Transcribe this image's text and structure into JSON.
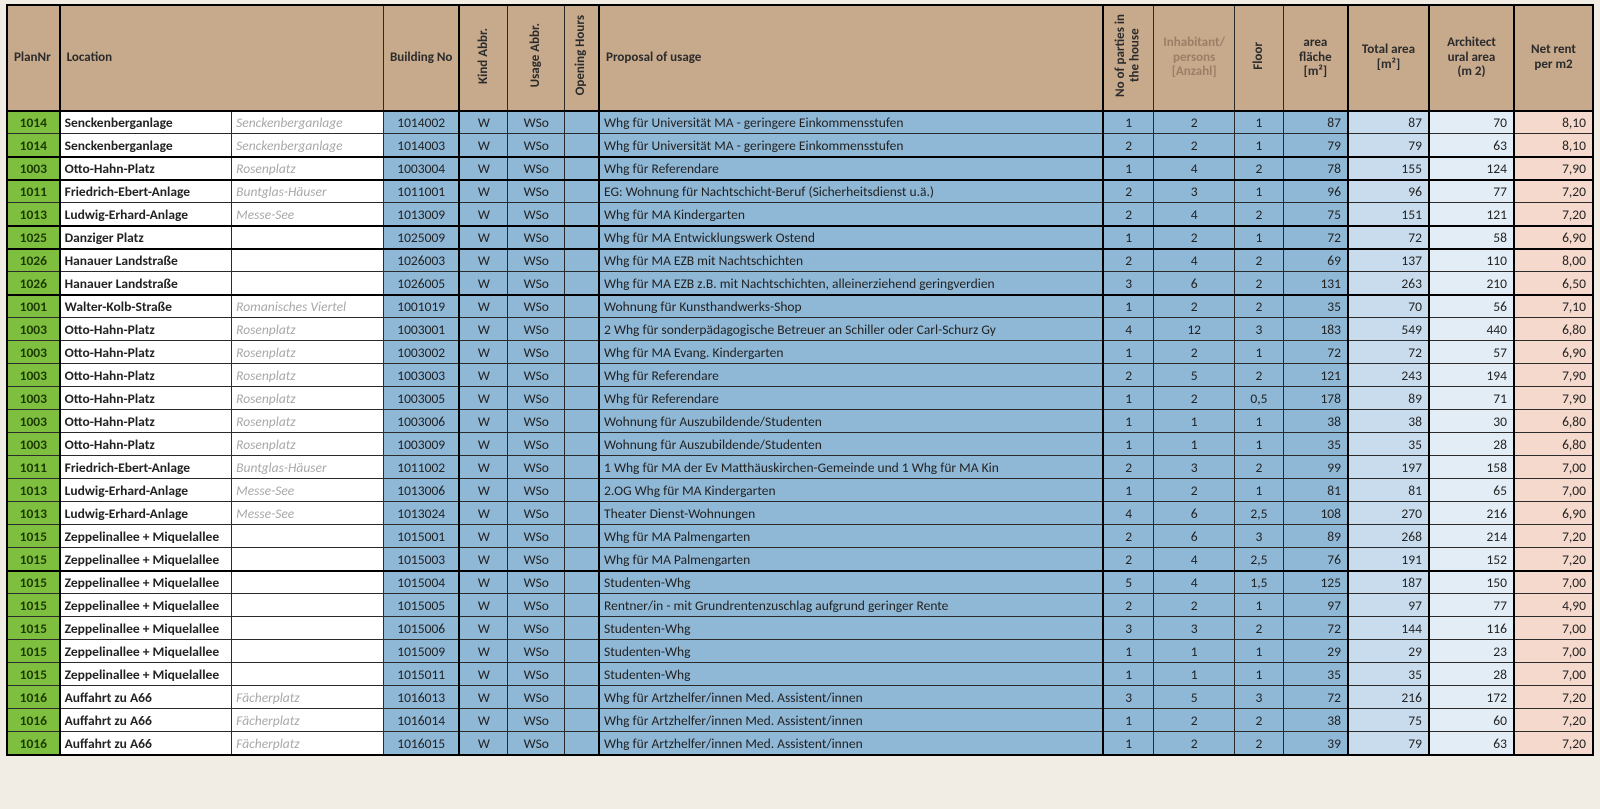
{
  "headers": {
    "plan": "PlanNr",
    "location": "Location",
    "sublocation": "",
    "building": "Building No",
    "kind": "Kind Abbr.",
    "usage": "Usage Abbr.",
    "opening": "Opening Hours",
    "proposal": "Proposal of usage",
    "parties": "No of parties in the house",
    "inhab_l1": "Inhabitant/",
    "inhab_l2": "persons",
    "inhab_l3": "[Anzahl]",
    "floor": "Floor",
    "area_l1": "area",
    "area_l2": "fläche",
    "area_l3": "[m²]",
    "total_l1": "Total area",
    "total_l2": "[m²]",
    "arch_l1": "Architect",
    "arch_l2": "ural area",
    "arch_l3": "(m 2)",
    "rent_l1": "Net rent",
    "rent_l2": "per m2"
  },
  "colors": {
    "header_bg": "#c7a98c",
    "plan_bg": "#7fbf3f",
    "blue_bg": "#8fb7d6",
    "total_bg": "#c9dced",
    "arch_bg": "#e3edf5",
    "rent_bg": "#f6d9cd",
    "white": "#ffffff",
    "grid": "#2b2b2b",
    "muted_header": "#9a7f66",
    "sub_text": "#a8a8a8"
  },
  "rows": [
    {
      "g": 1,
      "plan": "1014",
      "loc": "Senckenberganlage",
      "sub": "Senckenberganlage",
      "bld": "1014002",
      "kind": "W",
      "usage": "WSo",
      "open": "",
      "prop": "Whg für Universität MA - geringere Einkommensstufen",
      "parties": "1",
      "inhab": "2",
      "floor": "1",
      "area": "87",
      "total": "87",
      "arch": "70",
      "rent": "8,10"
    },
    {
      "g": 0,
      "plan": "1014",
      "loc": "Senckenberganlage",
      "sub": "Senckenberganlage",
      "bld": "1014003",
      "kind": "W",
      "usage": "WSo",
      "open": "",
      "prop": "Whg für Universität MA - geringere Einkommensstufen",
      "parties": "2",
      "inhab": "2",
      "floor": "1",
      "area": "79",
      "total": "79",
      "arch": "63",
      "rent": "8,10"
    },
    {
      "g": 1,
      "plan": "1003",
      "loc": "Otto-Hahn-Platz",
      "sub": "Rosenplatz",
      "bld": "1003004",
      "kind": "W",
      "usage": "WSo",
      "open": "",
      "prop": "Whg für Referendare",
      "parties": "1",
      "inhab": "4",
      "floor": "2",
      "area": "78",
      "total": "155",
      "arch": "124",
      "rent": "7,90"
    },
    {
      "g": 1,
      "plan": "1011",
      "loc": "Friedrich-Ebert-Anlage",
      "sub": "Buntglas-Häuser",
      "bld": "1011001",
      "kind": "W",
      "usage": "WSo",
      "open": "",
      "prop": "EG: Wohnung für Nachtschicht-Beruf (Sicherheitsdienst u.ä.)",
      "parties": "2",
      "inhab": "3",
      "floor": "1",
      "area": "96",
      "total": "96",
      "arch": "77",
      "rent": "7,20"
    },
    {
      "g": 0,
      "plan": "1013",
      "loc": "Ludwig-Erhard-Anlage",
      "sub": "Messe-See",
      "bld": "1013009",
      "kind": "W",
      "usage": "WSo",
      "open": "",
      "prop": "Whg für MA Kindergarten",
      "parties": "2",
      "inhab": "4",
      "floor": "2",
      "area": "75",
      "total": "151",
      "arch": "121",
      "rent": "7,20"
    },
    {
      "g": 1,
      "plan": "1025",
      "loc": "Danziger Platz",
      "sub": "",
      "bld": "1025009",
      "kind": "W",
      "usage": "WSo",
      "open": "",
      "prop": "Whg für MA Entwicklungswerk Ostend",
      "parties": "1",
      "inhab": "2",
      "floor": "1",
      "area": "72",
      "total": "72",
      "arch": "58",
      "rent": "6,90"
    },
    {
      "g": 1,
      "plan": "1026",
      "loc": "Hanauer Landstraße",
      "sub": "",
      "bld": "1026003",
      "kind": "W",
      "usage": "WSo",
      "open": "",
      "prop": "Whg für MA EZB mit Nachtschichten",
      "parties": "2",
      "inhab": "4",
      "floor": "2",
      "area": "69",
      "total": "137",
      "arch": "110",
      "rent": "8,00"
    },
    {
      "g": 0,
      "plan": "1026",
      "loc": "Hanauer Landstraße",
      "sub": "",
      "bld": "1026005",
      "kind": "W",
      "usage": "WSo",
      "open": "",
      "prop": "Whg für MA EZB z.B. mit Nachtschichten, alleinerziehend geringverdien",
      "parties": "3",
      "inhab": "6",
      "floor": "2",
      "area": "131",
      "total": "263",
      "arch": "210",
      "rent": "6,50"
    },
    {
      "g": 1,
      "plan": "1001",
      "loc": "Walter-Kolb-Straße",
      "sub": "Romanisches Viertel",
      "bld": "1001019",
      "kind": "W",
      "usage": "WSo",
      "open": "",
      "prop": "Wohnung für Kunsthandwerks-Shop",
      "parties": "1",
      "inhab": "2",
      "floor": "2",
      "area": "35",
      "total": "70",
      "arch": "56",
      "rent": "7,10"
    },
    {
      "g": 0,
      "plan": "1003",
      "loc": "Otto-Hahn-Platz",
      "sub": "Rosenplatz",
      "bld": "1003001",
      "kind": "W",
      "usage": "WSo",
      "open": "",
      "prop": "2 Whg für sonderpädagogische Betreuer an Schiller oder Carl-Schurz Gy",
      "parties": "4",
      "inhab": "12",
      "floor": "3",
      "area": "183",
      "total": "549",
      "arch": "440",
      "rent": "6,80"
    },
    {
      "g": 0,
      "plan": "1003",
      "loc": "Otto-Hahn-Platz",
      "sub": "Rosenplatz",
      "bld": "1003002",
      "kind": "W",
      "usage": "WSo",
      "open": "",
      "prop": "Whg für MA Evang. Kindergarten",
      "parties": "1",
      "inhab": "2",
      "floor": "1",
      "area": "72",
      "total": "72",
      "arch": "57",
      "rent": "6,90"
    },
    {
      "g": 0,
      "plan": "1003",
      "loc": "Otto-Hahn-Platz",
      "sub": "Rosenplatz",
      "bld": "1003003",
      "kind": "W",
      "usage": "WSo",
      "open": "",
      "prop": "Whg für Referendare",
      "parties": "2",
      "inhab": "5",
      "floor": "2",
      "area": "121",
      "total": "243",
      "arch": "194",
      "rent": "7,90"
    },
    {
      "g": 0,
      "plan": "1003",
      "loc": "Otto-Hahn-Platz",
      "sub": "Rosenplatz",
      "bld": "1003005",
      "kind": "W",
      "usage": "WSo",
      "open": "",
      "prop": "Whg für Referendare",
      "parties": "1",
      "inhab": "2",
      "floor": "0,5",
      "area": "178",
      "total": "89",
      "arch": "71",
      "rent": "7,90"
    },
    {
      "g": 0,
      "plan": "1003",
      "loc": "Otto-Hahn-Platz",
      "sub": "Rosenplatz",
      "bld": "1003006",
      "kind": "W",
      "usage": "WSo",
      "open": "",
      "prop": "Wohnung für Auszubildende/Studenten",
      "parties": "1",
      "inhab": "1",
      "floor": "1",
      "area": "38",
      "total": "38",
      "arch": "30",
      "rent": "6,80"
    },
    {
      "g": 0,
      "plan": "1003",
      "loc": "Otto-Hahn-Platz",
      "sub": "Rosenplatz",
      "bld": "1003009",
      "kind": "W",
      "usage": "WSo",
      "open": "",
      "prop": "Wohnung für Auszubildende/Studenten",
      "parties": "1",
      "inhab": "1",
      "floor": "1",
      "area": "35",
      "total": "35",
      "arch": "28",
      "rent": "6,80"
    },
    {
      "g": 0,
      "plan": "1011",
      "loc": "Friedrich-Ebert-Anlage",
      "sub": "Buntglas-Häuser",
      "bld": "1011002",
      "kind": "W",
      "usage": "WSo",
      "open": "",
      "prop": "1 Whg für MA der Ev Matthäuskirchen-Gemeinde und 1 Whg für MA Kin",
      "parties": "2",
      "inhab": "3",
      "floor": "2",
      "area": "99",
      "total": "197",
      "arch": "158",
      "rent": "7,00"
    },
    {
      "g": 0,
      "plan": "1013",
      "loc": "Ludwig-Erhard-Anlage",
      "sub": "Messe-See",
      "bld": "1013006",
      "kind": "W",
      "usage": "WSo",
      "open": "",
      "prop": "2.OG Whg für MA Kindergarten",
      "parties": "1",
      "inhab": "2",
      "floor": "1",
      "area": "81",
      "total": "81",
      "arch": "65",
      "rent": "7,00"
    },
    {
      "g": 0,
      "plan": "1013",
      "loc": "Ludwig-Erhard-Anlage",
      "sub": "Messe-See",
      "bld": "1013024",
      "kind": "W",
      "usage": "WSo",
      "open": "",
      "prop": "Theater Dienst-Wohnungen",
      "parties": "4",
      "inhab": "6",
      "floor": "2,5",
      "area": "108",
      "total": "270",
      "arch": "216",
      "rent": "6,90"
    },
    {
      "g": 0,
      "plan": "1015",
      "loc": "Zeppelinallee + Miquelallee",
      "sub": "",
      "bld": "1015001",
      "kind": "W",
      "usage": "WSo",
      "open": "",
      "prop": "Whg für MA Palmengarten",
      "parties": "2",
      "inhab": "6",
      "floor": "3",
      "area": "89",
      "total": "268",
      "arch": "214",
      "rent": "7,20"
    },
    {
      "g": 0,
      "plan": "1015",
      "loc": "Zeppelinallee + Miquelallee",
      "sub": "",
      "bld": "1015003",
      "kind": "W",
      "usage": "WSo",
      "open": "",
      "prop": "Whg für MA Palmengarten",
      "parties": "2",
      "inhab": "4",
      "floor": "2,5",
      "area": "76",
      "total": "191",
      "arch": "152",
      "rent": "7,20"
    },
    {
      "g": 1,
      "plan": "1015",
      "loc": "Zeppelinallee + Miquelallee",
      "sub": "",
      "bld": "1015004",
      "kind": "W",
      "usage": "WSo",
      "open": "",
      "prop": "Studenten-Whg",
      "parties": "5",
      "inhab": "4",
      "floor": "1,5",
      "area": "125",
      "total": "187",
      "arch": "150",
      "rent": "7,00"
    },
    {
      "g": 0,
      "plan": "1015",
      "loc": "Zeppelinallee + Miquelallee",
      "sub": "",
      "bld": "1015005",
      "kind": "W",
      "usage": "WSo",
      "open": "",
      "prop": "Rentner/in - mit Grundrentenzuschlag aufgrund geringer Rente",
      "parties": "2",
      "inhab": "2",
      "floor": "1",
      "area": "97",
      "total": "97",
      "arch": "77",
      "rent": "4,90"
    },
    {
      "g": 0,
      "plan": "1015",
      "loc": "Zeppelinallee + Miquelallee",
      "sub": "",
      "bld": "1015006",
      "kind": "W",
      "usage": "WSo",
      "open": "",
      "prop": "Studenten-Whg",
      "parties": "3",
      "inhab": "3",
      "floor": "2",
      "area": "72",
      "total": "144",
      "arch": "116",
      "rent": "7,00"
    },
    {
      "g": 0,
      "plan": "1015",
      "loc": "Zeppelinallee + Miquelallee",
      "sub": "",
      "bld": "1015009",
      "kind": "W",
      "usage": "WSo",
      "open": "",
      "prop": "Studenten-Whg",
      "parties": "1",
      "inhab": "1",
      "floor": "1",
      "area": "29",
      "total": "29",
      "arch": "23",
      "rent": "7,00"
    },
    {
      "g": 0,
      "plan": "1015",
      "loc": "Zeppelinallee + Miquelallee",
      "sub": "",
      "bld": "1015011",
      "kind": "W",
      "usage": "WSo",
      "open": "",
      "prop": "Studenten-Whg",
      "parties": "1",
      "inhab": "1",
      "floor": "1",
      "area": "35",
      "total": "35",
      "arch": "28",
      "rent": "7,00"
    },
    {
      "g": 0,
      "plan": "1016",
      "loc": "Auffahrt zu A66",
      "sub": "Fächerplatz",
      "bld": "1016013",
      "kind": "W",
      "usage": "WSo",
      "open": "",
      "prop": "Whg für Artzhelfer/innen  Med. Assistent/innen",
      "parties": "3",
      "inhab": "5",
      "floor": "3",
      "area": "72",
      "total": "216",
      "arch": "172",
      "rent": "7,20"
    },
    {
      "g": 0,
      "plan": "1016",
      "loc": "Auffahrt zu A66",
      "sub": "Fächerplatz",
      "bld": "1016014",
      "kind": "W",
      "usage": "WSo",
      "open": "",
      "prop": "Whg für Artzhelfer/innen  Med. Assistent/innen",
      "parties": "1",
      "inhab": "2",
      "floor": "2",
      "area": "38",
      "total": "75",
      "arch": "60",
      "rent": "7,20"
    },
    {
      "g": 0,
      "plan": "1016",
      "loc": "Auffahrt zu A66",
      "sub": "Fächerplatz",
      "bld": "1016015",
      "kind": "W",
      "usage": "WSo",
      "open": "",
      "prop": "Whg für Artzhelfer/innen  Med. Assistent/innen",
      "parties": "1",
      "inhab": "2",
      "floor": "2",
      "area": "39",
      "total": "79",
      "arch": "63",
      "rent": "7,20"
    }
  ]
}
